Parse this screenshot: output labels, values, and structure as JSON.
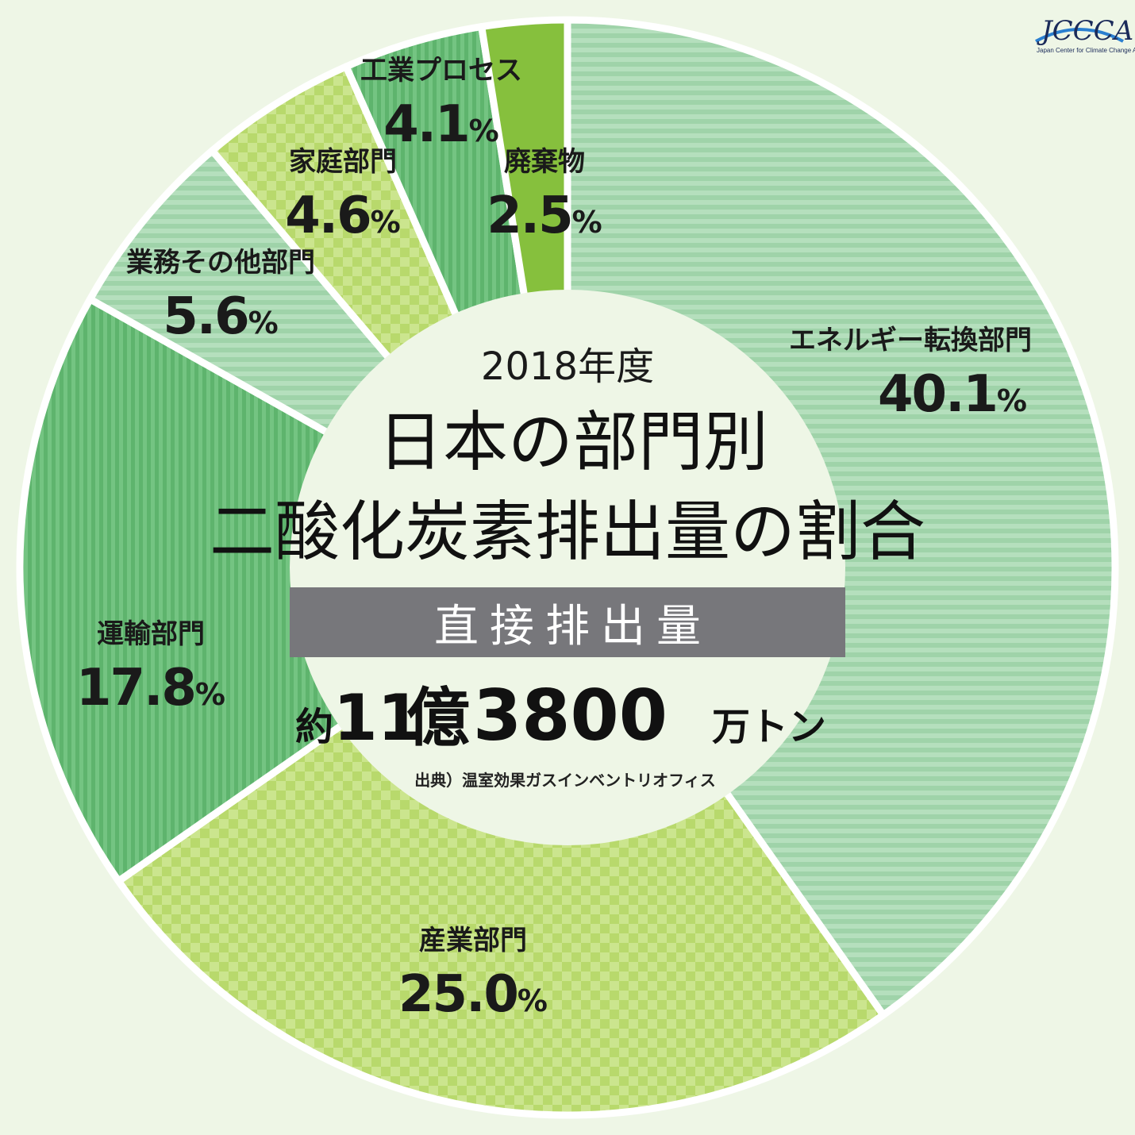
{
  "logo": {
    "text": "JCCCA",
    "subtitle": "Japan Center for Climate Change Actions",
    "color": "#1b2b5a",
    "accent": "#2a7fd0"
  },
  "center": {
    "year": "2018年度",
    "title_line1": "日本の部門別",
    "title_line2": "二酸化炭素排出量の割合",
    "band": "直接排出量",
    "total_prefix": "約",
    "total_num1": "11",
    "total_unit1": "億",
    "total_num2": "3800",
    "total_unit2": "万トン",
    "source": "出典）温室効果ガスインベントリオフィス"
  },
  "chart_data": {
    "type": "pie",
    "style": "donut",
    "categories": [
      "エネルギー転換部門",
      "産業部門",
      "運輸部門",
      "業務その他部門",
      "家庭部門",
      "工業プロセス",
      "廃棄物"
    ],
    "values": [
      40.1,
      25.0,
      17.8,
      5.6,
      4.6,
      4.1,
      2.5
    ],
    "value_labels": [
      "40.1",
      "25.0",
      "17.8",
      "5.6",
      "4.6",
      "4.1",
      "2.5"
    ],
    "unit": "%",
    "colors": [
      "#a9d9b2",
      "#c4e07e",
      "#6cc07a",
      "#a9d9b2",
      "#c4e07e",
      "#6cc07a",
      "#86c03d"
    ],
    "patterns": [
      "horizontal-stripes",
      "checker",
      "vertical-stripes",
      "horizontal-stripes",
      "checker",
      "vertical-stripes",
      "solid"
    ]
  }
}
